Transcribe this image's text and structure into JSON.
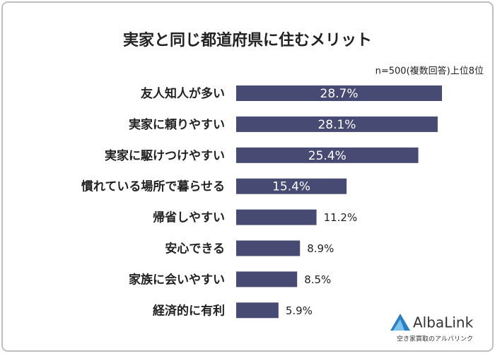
{
  "chart_data": {
    "type": "bar",
    "orientation": "horizontal",
    "title": "実家と同じ都道府県に住むメリット",
    "subtitle": "n=500(複数回答)上位8位",
    "categories": [
      "友人知人が多い",
      "実家に頼りやすい",
      "実家に駆けつけやすい",
      "慣れている場所で暮らせる",
      "帰省しやすい",
      "安心できる",
      "家族に会いやすい",
      "経済的に有利"
    ],
    "values": [
      28.7,
      28.1,
      25.4,
      15.4,
      11.2,
      8.9,
      8.5,
      5.9
    ],
    "value_labels": [
      "28.7%",
      "28.1%",
      "25.4%",
      "15.4%",
      "11.2%",
      "8.9%",
      "8.5%",
      "5.9%"
    ],
    "color": "#474a72"
  },
  "logo": {
    "name": "AlbaLink",
    "tagline": "空き家買取のアルバリンク"
  }
}
